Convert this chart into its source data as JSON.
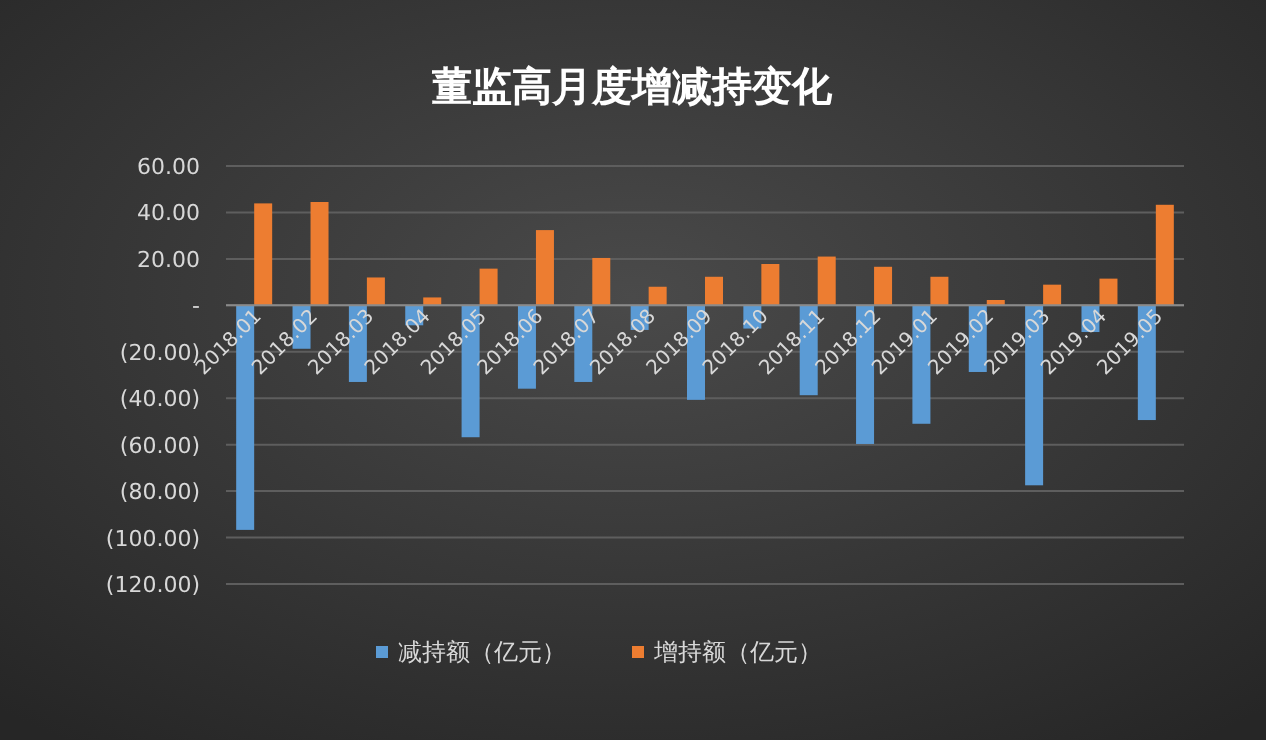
{
  "chart_data": {
    "type": "bar",
    "title": "董监高月度增减持变化",
    "categories": [
      "2018.01",
      "2018.02",
      "2018.03",
      "2018.04",
      "2018.05",
      "2018.06",
      "2018.07",
      "2018.08",
      "2018.09",
      "2018.10",
      "2018.11",
      "2018.12",
      "2019.01",
      "2019.02",
      "2019.03",
      "2019.04",
      "2019.05"
    ],
    "series": [
      {
        "name": "减持额（亿元）",
        "color": "#5b9bd5",
        "values": [
          -96.7,
          -18.7,
          -33,
          -8.6,
          -56.8,
          -35.9,
          -33,
          -10.6,
          -40.7,
          -10,
          -38.7,
          -59.7,
          -51,
          -28.7,
          -77.5,
          -11.5,
          -49.4
        ]
      },
      {
        "name": "增持额（亿元）",
        "color": "#ed7d31",
        "values": [
          43.9,
          44.5,
          12,
          3.4,
          15.8,
          32.4,
          20.4,
          8,
          12.3,
          17.8,
          21,
          16.6,
          12.3,
          2.3,
          8.9,
          11.5,
          43.3
        ]
      }
    ],
    "ylim": [
      -120,
      60
    ],
    "yticks": [
      {
        "value": 60,
        "label": "60.00"
      },
      {
        "value": 40,
        "label": "40.00"
      },
      {
        "value": 20,
        "label": "20.00"
      },
      {
        "value": 0,
        "label": "-"
      },
      {
        "value": -20,
        "label": "(20.00)"
      },
      {
        "value": -40,
        "label": "(40.00)"
      },
      {
        "value": -60,
        "label": "(60.00)"
      },
      {
        "value": -80,
        "label": "(80.00)"
      },
      {
        "value": -100,
        "label": "(100.00)"
      },
      {
        "value": -120,
        "label": "(120.00)"
      }
    ],
    "grid": "y",
    "legend": "bottom"
  }
}
